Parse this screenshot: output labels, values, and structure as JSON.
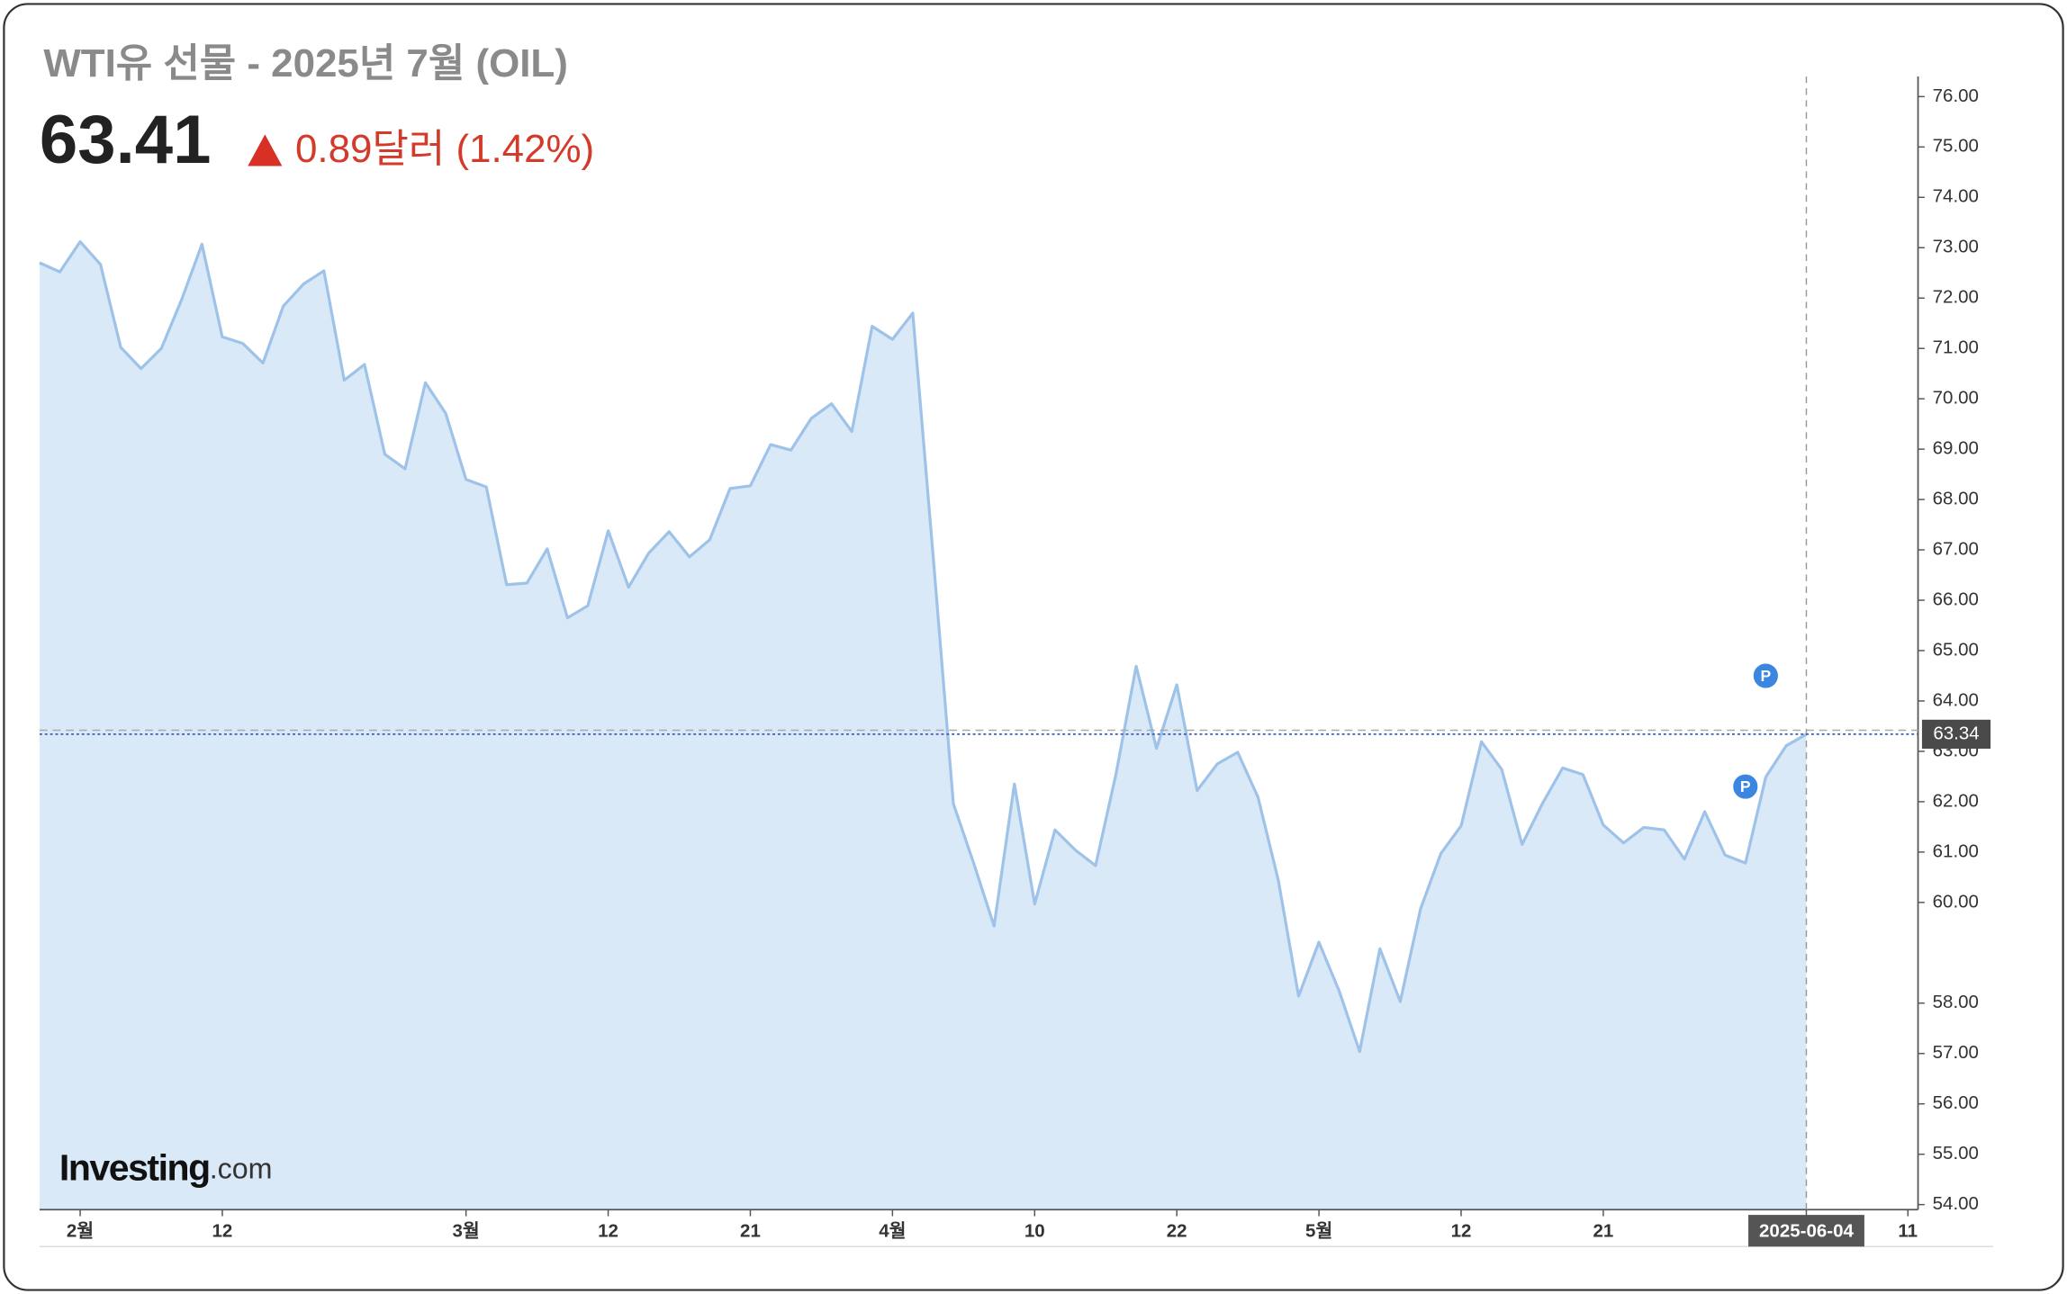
{
  "header": {
    "title": "WTI유 선물 - 2025년 7월 (OIL)",
    "price": "63.41",
    "change": "0.89달러 (1.42%)"
  },
  "logo": {
    "brand": "Investing",
    "suffix": ".com"
  },
  "chart_data": {
    "type": "area",
    "color": "#9fc3e8",
    "fill": "#d9e9f7",
    "values": [
      72.7,
      72.52,
      73.12,
      72.67,
      71.02,
      70.6,
      71.0,
      71.97,
      73.07,
      71.23,
      71.1,
      70.71,
      71.84,
      72.28,
      72.54,
      70.37,
      70.68,
      68.9,
      68.61,
      70.32,
      69.71,
      68.4,
      68.25,
      66.31,
      66.34,
      67.02,
      65.65,
      65.89,
      67.38,
      66.26,
      66.94,
      67.36,
      66.86,
      67.2,
      68.22,
      68.27,
      69.09,
      68.98,
      69.61,
      69.9,
      69.35,
      71.44,
      71.18,
      71.7,
      66.9,
      61.96,
      60.78,
      59.53,
      62.35,
      59.97,
      61.44,
      61.04,
      60.73,
      62.54,
      64.69,
      63.06,
      64.32,
      62.22,
      62.75,
      62.98,
      62.09,
      60.44,
      58.14,
      59.21,
      58.24,
      57.04,
      59.08,
      58.03,
      59.87,
      60.97,
      61.52,
      63.19,
      62.64,
      61.15,
      61.96,
      62.67,
      62.54,
      61.54,
      61.18,
      61.49,
      61.44,
      60.86,
      61.8,
      60.94,
      60.78,
      62.49,
      63.11,
      63.34
    ],
    "xlim": [
      0,
      92.5
    ],
    "xticks": [
      {
        "value": 2,
        "label": "2월"
      },
      {
        "value": 9,
        "label": "12"
      },
      {
        "value": 21,
        "label": "3월"
      },
      {
        "value": 28,
        "label": "12"
      },
      {
        "value": 35,
        "label": "21"
      },
      {
        "value": 42,
        "label": "4월"
      },
      {
        "value": 49,
        "label": "10"
      },
      {
        "value": 56,
        "label": "22"
      },
      {
        "value": 63,
        "label": "5월"
      },
      {
        "value": 70,
        "label": "12"
      },
      {
        "value": 77,
        "label": "21"
      },
      {
        "value": 87,
        "label": "2025-06-04"
      },
      {
        "value": 92,
        "label": "11"
      }
    ],
    "crosshair_x": 87,
    "ylim": [
      53.9,
      76.4
    ],
    "yticks": [
      {
        "value": 54,
        "label": "54.00"
      },
      {
        "value": 55,
        "label": "55.00"
      },
      {
        "value": 56,
        "label": "56.00"
      },
      {
        "value": 57,
        "label": "57.00"
      },
      {
        "value": 58,
        "label": "58.00"
      },
      {
        "value": 60,
        "label": "60.00"
      },
      {
        "value": 61,
        "label": "61.00"
      },
      {
        "value": 62,
        "label": "62.00"
      },
      {
        "value": 63,
        "label": "63.00"
      },
      {
        "value": 64,
        "label": "64.00"
      },
      {
        "value": 65,
        "label": "65.00"
      },
      {
        "value": 66,
        "label": "66.00"
      },
      {
        "value": 67,
        "label": "67.00"
      },
      {
        "value": 68,
        "label": "68.00"
      },
      {
        "value": 69,
        "label": "69.00"
      },
      {
        "value": 70,
        "label": "70.00"
      },
      {
        "value": 71,
        "label": "71.00"
      },
      {
        "value": 72,
        "label": "72.00"
      },
      {
        "value": 73,
        "label": "73.00"
      },
      {
        "value": 74,
        "label": "74.00"
      },
      {
        "value": 75,
        "label": "75.00"
      },
      {
        "value": 76,
        "label": "76.00"
      }
    ],
    "current_price": 63.34,
    "events": [
      {
        "label": "P",
        "x": 85,
        "y": 64.5
      },
      {
        "label": "P",
        "x": 84,
        "y": 62.3
      }
    ]
  }
}
